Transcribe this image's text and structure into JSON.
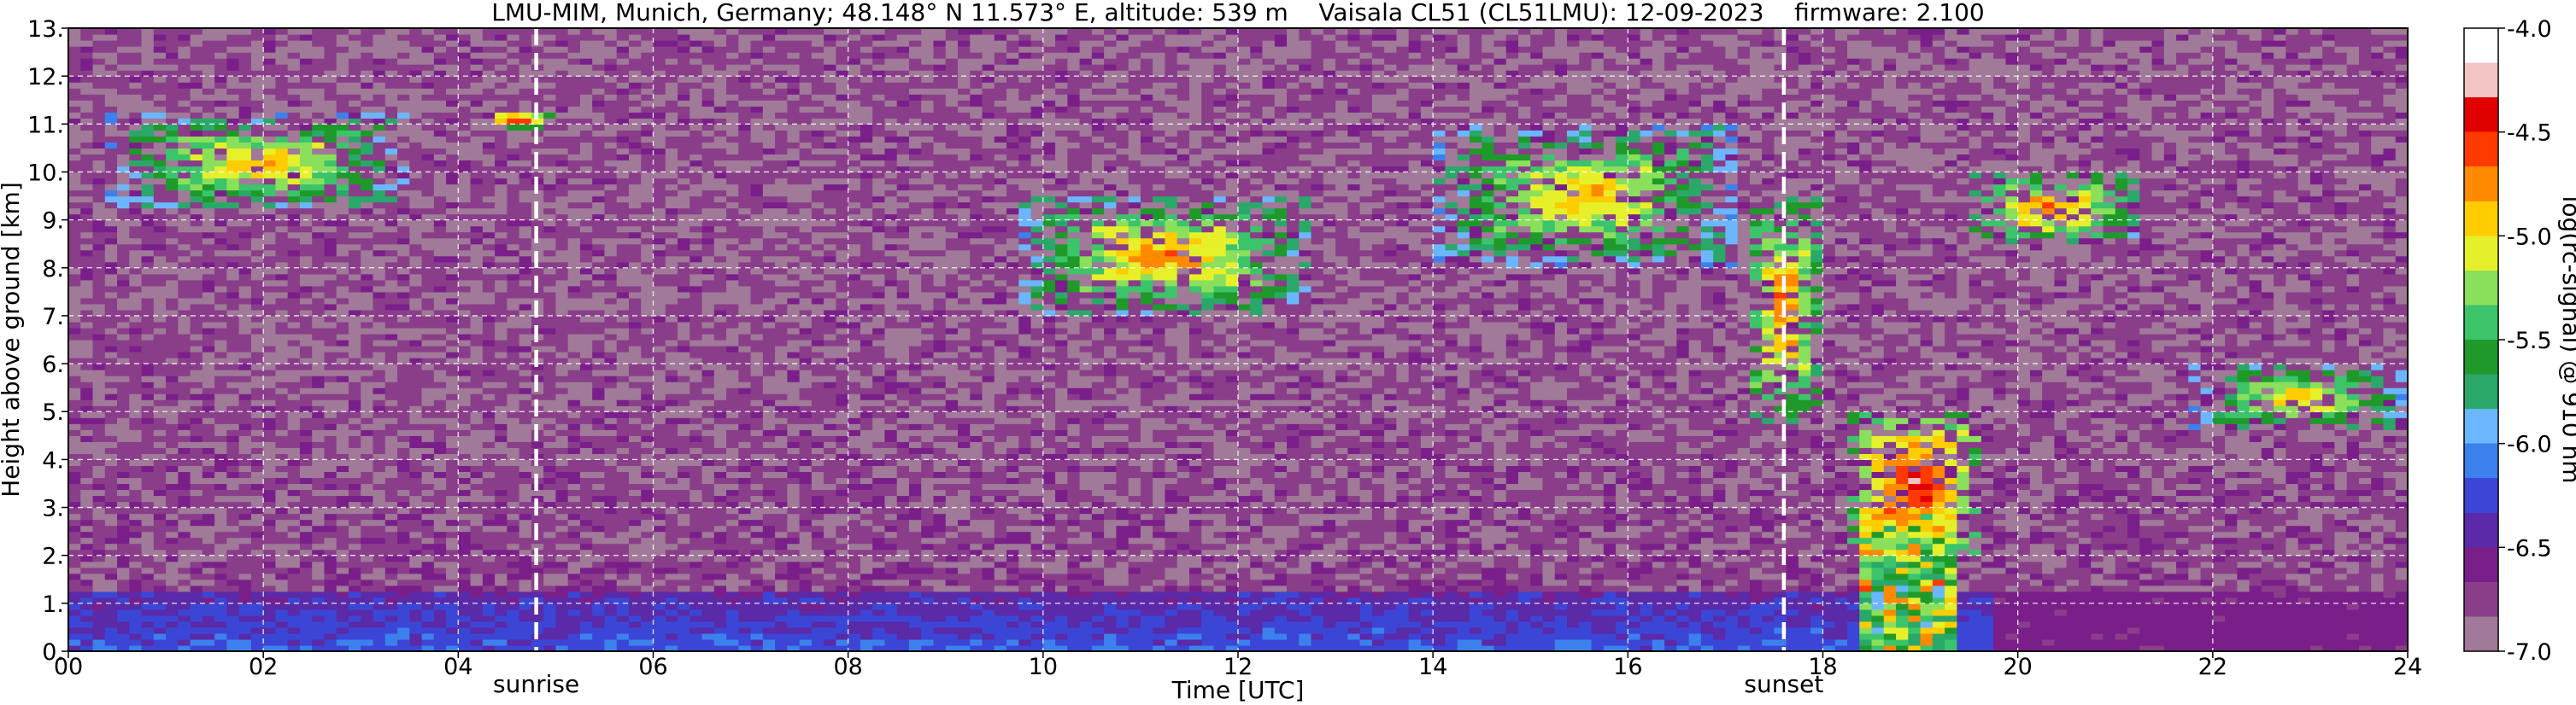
{
  "chart_data": {
    "type": "heatmap",
    "title": "LMU-MIM, Munich, Germany; 48.148° N 11.573° E, altitude: 539 m    Vaisala CL51 (CL51LMU): 12-09-2023    firmware: 2.100",
    "xlabel": "Time [UTC]",
    "ylabel": "Height above ground [km]",
    "xlim": [
      0,
      24
    ],
    "ylim": [
      0,
      13
    ],
    "x_ticks": [
      0,
      2,
      4,
      6,
      8,
      10,
      12,
      14,
      16,
      18,
      20,
      22,
      24
    ],
    "x_tick_labels": [
      "00",
      "02",
      "04",
      "06",
      "08",
      "10",
      "12",
      "14",
      "16",
      "18",
      "20",
      "22",
      "24"
    ],
    "y_ticks": [
      0,
      1,
      2,
      3,
      4,
      5,
      6,
      7,
      8,
      9,
      10,
      11,
      12,
      13
    ],
    "y_tick_labels": [
      "0.",
      "1.",
      "2.",
      "3.",
      "4.",
      "5.",
      "6.",
      "7.",
      "8.",
      "9.",
      "10.",
      "11.",
      "12.",
      "13."
    ],
    "grid": true,
    "markers": [
      {
        "label": "sunrise",
        "x": 4.8
      },
      {
        "label": "sunset",
        "x": 17.6
      }
    ],
    "colorbar": {
      "label": "log(rc-signal) @ 910 nm",
      "min": -7.0,
      "max": -4.0,
      "ticks": [
        -4.0,
        -4.5,
        -5.0,
        -5.5,
        -6.0,
        -6.5,
        -7.0
      ],
      "tick_labels": [
        "-4.0",
        "-4.5",
        "-5.0",
        "-5.5",
        "-6.0",
        "-6.5",
        "-7.0"
      ],
      "colors": [
        "#a07a98",
        "#8a3e8a",
        "#7a1f8a",
        "#5a2aa8",
        "#3c46d6",
        "#3c80ee",
        "#6cb6ff",
        "#2aa86a",
        "#1f9a2a",
        "#3cc46a",
        "#8ae05a",
        "#e6f02a",
        "#ffcc00",
        "#ff8a00",
        "#ff3a00",
        "#e00000",
        "#f4c4c4",
        "#ffffff"
      ]
    },
    "cloud_layers": [
      {
        "t0": 0.4,
        "t1": 3.5,
        "h0": 9.2,
        "h1": 11.2,
        "level": -4.8
      },
      {
        "t0": 4.2,
        "t1": 5.0,
        "h0": 10.9,
        "h1": 11.3,
        "level": -4.5
      },
      {
        "t0": 9.8,
        "t1": 12.7,
        "h0": 7.0,
        "h1": 9.5,
        "level": -4.7
      },
      {
        "t0": 14.0,
        "t1": 17.1,
        "h0": 8.0,
        "h1": 11.0,
        "level": -4.8
      },
      {
        "t0": 17.2,
        "t1": 18.0,
        "h0": 4.8,
        "h1": 9.5,
        "level": -4.6
      },
      {
        "t0": 18.3,
        "t1": 19.6,
        "h0": 2.0,
        "h1": 5.0,
        "level": -4.3
      },
      {
        "t0": 19.5,
        "t1": 21.2,
        "h0": 8.5,
        "h1": 10.0,
        "level": -4.6
      },
      {
        "t0": 21.8,
        "t1": 24.0,
        "h0": 4.6,
        "h1": 6.0,
        "level": -4.8
      }
    ],
    "precipitation": [
      {
        "t0": 18.4,
        "t1": 19.4,
        "h0": 0.0,
        "h1": 3.0,
        "level": -5.3
      }
    ],
    "boundary_layer": {
      "top_km": 1.3,
      "level": -6.2
    }
  }
}
